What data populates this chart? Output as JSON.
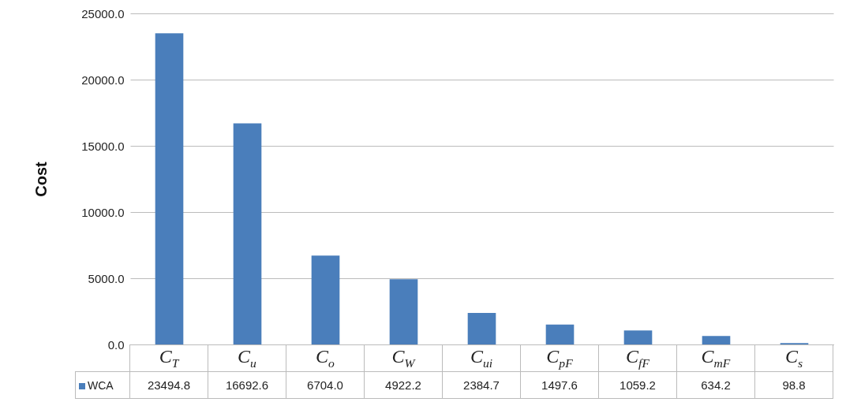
{
  "chart_data": {
    "type": "bar",
    "ylabel": "Cost",
    "categories": [
      "C$_{T}$",
      "C$_{u}$",
      "C$_{o}$",
      "C$_{W}$",
      "C$_{ui}$",
      "C$_{pF}$",
      "C$_{fF}$",
      "C$_{mF}$",
      "C$_{s}$"
    ],
    "series": [
      {
        "name": "WCA",
        "color": "#4a7ebb",
        "values": [
          23494.8,
          16692.6,
          6704,
          4922.2,
          2384.7,
          1497.6,
          1059.2,
          634.2,
          98.8
        ],
        "value_labels": [
          "23494.8",
          "16692.6",
          "6704.0",
          "4922.2",
          "2384.7",
          "1497.6",
          "1059.2",
          "634.2",
          "98.8"
        ]
      }
    ],
    "ylim": [
      0,
      25000
    ],
    "yticks": [
      {
        "value": 0,
        "label": "0.0"
      },
      {
        "value": 5000,
        "label": "5000.0"
      },
      {
        "value": 10000,
        "label": "10000.0"
      },
      {
        "value": 15000,
        "label": "15000.0"
      },
      {
        "value": 20000,
        "label": "20000.0"
      },
      {
        "value": 25000,
        "label": "25000.0"
      }
    ],
    "grid": "y",
    "legend": "bottom"
  }
}
